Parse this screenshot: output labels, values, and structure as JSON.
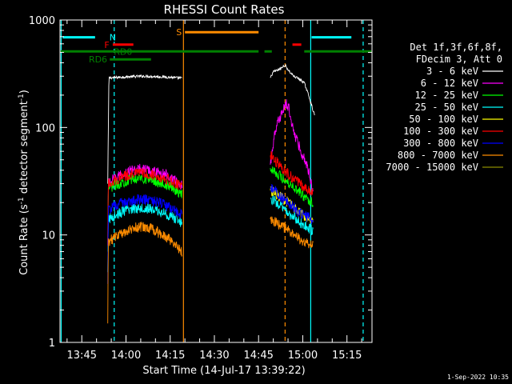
{
  "chart_data": {
    "type": "line",
    "title": "RHESSI Count Rates",
    "xlabel": "Start Time (14-Jul-17 13:39:22)",
    "ylabel_parts": [
      "Count Rate (s",
      "-1",
      " detector segment",
      "-1",
      ")"
    ],
    "y_scale": "log",
    "ylim": [
      1,
      1000
    ],
    "y_ticks": [
      1,
      10,
      100,
      1000
    ],
    "y_tick_labels": [
      "1",
      "10",
      "100",
      "1000"
    ],
    "xlim_minutes": [
      -7.4,
      98.5
    ],
    "x_ticks": [
      {
        "label": "13:45",
        "minute": 0
      },
      {
        "label": "14:00",
        "minute": 15
      },
      {
        "label": "14:15",
        "minute": 30
      },
      {
        "label": "14:30",
        "minute": 45
      },
      {
        "label": "14:45",
        "minute": 60
      },
      {
        "label": "15:00",
        "minute": 75
      },
      {
        "label": "15:15",
        "minute": 90
      }
    ],
    "legend_header": [
      "Det 1f,3f,6f,8f,",
      "FDecim 3, Att 0"
    ],
    "legend_placement": "right",
    "series": [
      {
        "name": "3 - 6 keV",
        "color": "#ffffff",
        "segments": [
          {
            "t": [
              8.8,
              9.2,
              10,
              12,
              15,
              18,
              21,
              24,
              27,
              30,
              32,
              34
            ],
            "y": [
              30,
              290,
              290,
              292,
              296,
              298,
              300,
              298,
              296,
              293,
              290,
              288
            ]
          },
          {
            "t": [
              64.0,
              65,
              67,
              69,
              70.5,
              72,
              74,
              75.5,
              77,
              78,
              79
            ],
            "y": [
              290,
              330,
              345,
              380,
              330,
              300,
              280,
              260,
              200,
              160,
              130
            ]
          }
        ]
      },
      {
        "name": "6 - 12 keV",
        "color": "#ff00ff",
        "segments": [
          {
            "t": [
              8.8,
              9.0,
              11,
              14,
              17,
              20,
              23,
              26,
              29,
              31,
              33,
              34
            ],
            "y": [
              8,
              30,
              33,
              37,
              40,
              41,
              40,
              38,
              36,
              33,
              30,
              29
            ]
          },
          {
            "t": [
              64.0,
              65.5,
              67,
              68.5,
              69.5,
              70.3,
              71,
              72,
              73.5,
              75,
              77,
              78.5
            ],
            "y": [
              45,
              90,
              120,
              150,
              165,
              150,
              120,
              90,
              70,
              55,
              40,
              25
            ]
          }
        ]
      },
      {
        "name": "12 - 25 keV",
        "color": "#00ff00",
        "segments": [
          {
            "t": [
              8.8,
              9.0,
              11,
              14,
              17,
              20,
              23,
              26,
              29,
              31,
              33,
              34
            ],
            "y": [
              7,
              27,
              29,
              31,
              33,
              34,
              33,
              31,
              29,
              27,
              25,
              24
            ]
          },
          {
            "t": [
              64.0,
              66,
              68,
              70,
              72,
              74,
              76,
              78.5
            ],
            "y": [
              42,
              38,
              34,
              31,
              28,
              25,
              22,
              20
            ]
          }
        ]
      },
      {
        "name": "25 - 50 keV",
        "color": "#00ffff",
        "segments": [
          {
            "t": [
              8.8,
              9.0,
              11,
              14,
              17,
              20,
              23,
              26,
              29,
              31,
              33,
              34
            ],
            "y": [
              4.5,
              14,
              15,
              16.5,
              17.5,
              18,
              17.5,
              16.5,
              15.5,
              14.5,
              13.5,
              13
            ]
          },
          {
            "t": [
              64.0,
              66,
              68,
              70,
              72,
              74,
              76,
              78.5
            ],
            "y": [
              22,
              20,
              18,
              16,
              14.5,
              13,
              12,
              11
            ]
          }
        ]
      },
      {
        "name": "50 - 100 keV",
        "color": "#ffff00",
        "segments": [
          {
            "t": [
              64.0,
              66,
              68,
              70,
              72,
              74,
              76,
              78.5
            ],
            "y": [
              26,
              24,
              22,
              20,
              18,
              16,
              15,
              14
            ]
          }
        ]
      },
      {
        "name": "100 - 300 keV",
        "color": "#ff0000",
        "segments": [
          {
            "t": [
              8.8,
              9.0,
              11,
              14,
              17,
              20,
              23,
              26,
              29,
              31,
              33,
              34
            ],
            "y": [
              8,
              30,
              32,
              35,
              37,
              38,
              37,
              35,
              33,
              31,
              29,
              28
            ]
          },
          {
            "t": [
              64.0,
              66,
              68,
              70,
              72,
              74,
              76,
              78.5
            ],
            "y": [
              55,
              48,
              42,
              37,
              33,
              30,
              27,
              25
            ]
          }
        ]
      },
      {
        "name": "300 - 800 keV",
        "color": "#0000ff",
        "segments": [
          {
            "t": [
              8.8,
              9.0,
              11,
              14,
              17,
              20,
              23,
              26,
              29,
              31,
              33,
              34
            ],
            "y": [
              3.5,
              17,
              18.5,
              20,
              21,
              21.5,
              21,
              20,
              18.5,
              17,
              16,
              15.5
            ]
          },
          {
            "t": [
              64.0,
              66,
              68,
              70,
              72,
              74,
              76,
              78.5
            ],
            "y": [
              28,
              25,
              22,
              20,
              18,
              16,
              15,
              14
            ]
          }
        ]
      },
      {
        "name": "800 - 7000 keV",
        "color": "#ff8c00",
        "segments": [
          {
            "t": [
              8.8,
              9.0,
              11,
              14,
              17,
              20,
              23,
              26,
              29,
              31,
              33,
              34
            ],
            "y": [
              1.5,
              8.5,
              9.5,
              10.5,
              11.5,
              12,
              11.5,
              10.5,
              9.5,
              8.5,
              7.5,
              7
            ]
          },
          {
            "t": [
              64.0,
              66,
              68,
              70,
              72,
              74,
              76,
              78.5
            ],
            "y": [
              14,
              13,
              12,
              11,
              10,
              9.2,
              8.6,
              8
            ]
          }
        ]
      },
      {
        "name": "7000 - 15000 keV",
        "color": "#8b8b00",
        "segments": []
      }
    ],
    "bars": [
      {
        "label": "N",
        "color": "#00ffff",
        "y": 690,
        "ranges": [
          [
            -6.5,
            4.5
          ],
          [
            78,
            91.5
          ]
        ],
        "label_minute": 10.5
      },
      {
        "label": "S",
        "color": "#ff8c00",
        "y": 770,
        "ranges": [
          [
            35,
            60
          ]
        ],
        "label_minute": 33
      },
      {
        "label": "F",
        "color": "#ff0000",
        "y": 590,
        "ranges": [
          [
            10.5,
            17.5
          ],
          [
            71.5,
            74.5
          ]
        ],
        "label_minute": 8.5
      },
      {
        "label": "RD0",
        "color": "#008000",
        "y": 510,
        "ranges": [
          [
            -7.2,
            60
          ],
          [
            62,
            64.5
          ],
          [
            75.5,
            98.3
          ]
        ],
        "label_minute": 14
      },
      {
        "label": "RD6",
        "color": "#008000",
        "y": 430,
        "ranges": [
          [
            9.5,
            23.5
          ]
        ],
        "label_minute": 5.5
      }
    ],
    "vlines": [
      {
        "minute": -7.0,
        "color": "#00ffff",
        "style": "solid"
      },
      {
        "minute": 11.0,
        "color": "#00ffff",
        "style": "dashed"
      },
      {
        "minute": 77.7,
        "color": "#00ffff",
        "style": "solid"
      },
      {
        "minute": 95.5,
        "color": "#00ffff",
        "style": "dashed"
      },
      {
        "minute": 34.5,
        "color": "#ff8c00",
        "style": "solid"
      },
      {
        "minute": 69.0,
        "color": "#ff8c00",
        "style": "dashed"
      }
    ],
    "grid": false
  },
  "footer": {
    "timestamp": "1-Sep-2022 10:35"
  }
}
